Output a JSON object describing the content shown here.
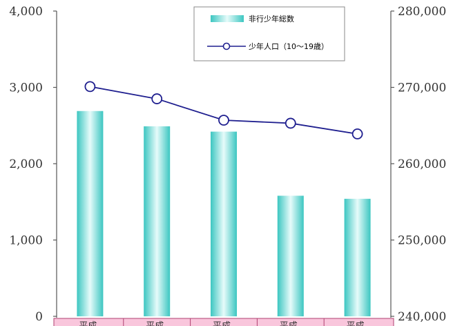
{
  "chart_data": {
    "type": "bar",
    "categories": [
      "平成",
      "平成",
      "平成",
      "平成",
      "平成"
    ],
    "series": [
      {
        "name": "非行少年総数",
        "axis": "left",
        "kind": "bar",
        "color": "#48cfcb",
        "values": [
          2690,
          2490,
          2420,
          1580,
          1540
        ]
      },
      {
        "name": "少年人口（10～19歳）",
        "axis": "right",
        "kind": "line",
        "color": "#1f1f8f",
        "values": [
          270100,
          268500,
          265700,
          265300,
          263900
        ]
      }
    ],
    "ylim_left": [
      0,
      4000
    ],
    "yticks_left": [
      "0",
      "1,000",
      "2,000",
      "3,000",
      "4,000"
    ],
    "ylim_right": [
      240000,
      280000
    ],
    "yticks_right": [
      "240,000",
      "250,000",
      "260,000",
      "270,000",
      "280,000"
    ],
    "legend_position": "top-right",
    "grid": false,
    "category_band_color": "#f9c6dc"
  }
}
